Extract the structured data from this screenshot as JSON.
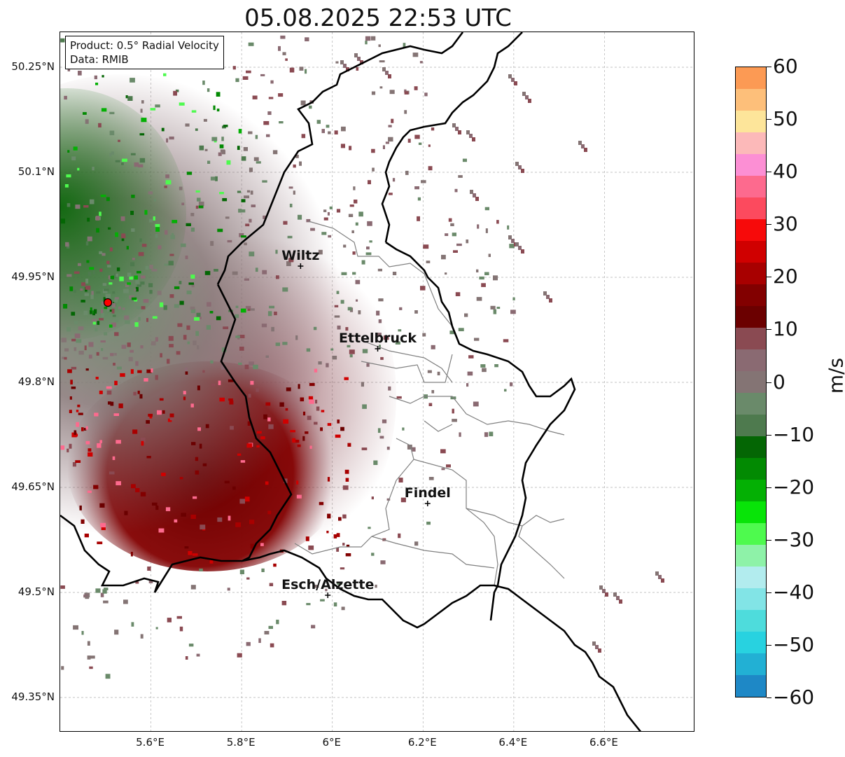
{
  "title": "05.08.2025 22:53 UTC",
  "info": {
    "product": "Product: 0.5° Radial Velocity",
    "source": "Data: RMIB"
  },
  "latitude_labels": [
    "50.25°N",
    "50.1°N",
    "49.95°N",
    "49.8°N",
    "49.65°N",
    "49.5°N",
    "49.35°N"
  ],
  "longitude_labels": [
    "5.6°E",
    "5.8°E",
    "6°E",
    "6.2°E",
    "6.4°E",
    "6.6°E"
  ],
  "colorbar": {
    "unit": "m/s",
    "ticks": [
      "60",
      "50",
      "40",
      "30",
      "20",
      "10",
      "0",
      "−10",
      "−20",
      "−30",
      "−40",
      "−50",
      "−60"
    ],
    "range": [
      -60,
      60
    ],
    "colors_top_to_bottom": [
      "#fc9a54",
      "#fdbf7a",
      "#fde59a",
      "#fcb9b9",
      "#fc8fd4",
      "#fd6a8e",
      "#fc4a5e",
      "#f70a0a",
      "#d00000",
      "#a80000",
      "#820000",
      "#6b0000",
      "#8a4a52",
      "#8a6a72",
      "#847474",
      "#6a8a6a",
      "#4e7a4e",
      "#046604",
      "#028a02",
      "#04b004",
      "#08e408",
      "#4efa4e",
      "#8ef2a8",
      "#b2ecee",
      "#82e4e6",
      "#4edcdc",
      "#28d2e0",
      "#22b0d4",
      "#1e88c6"
    ]
  },
  "cities": [
    {
      "name": "Wiltz",
      "lon": 5.93,
      "lat": 49.966
    },
    {
      "name": "Ettelbruck",
      "lon": 6.1,
      "lat": 49.848
    },
    {
      "name": "Findel",
      "lon": 6.21,
      "lat": 49.627
    },
    {
      "name": "Esch/Alzette",
      "lon": 5.99,
      "lat": 49.496
    }
  ],
  "radar_site": {
    "lon": 5.505,
    "lat": 49.914
  },
  "extent": {
    "lon_min": 5.4,
    "lon_max": 6.8,
    "lat_min": 49.3,
    "lat_max": 50.3
  },
  "colors": {
    "border": "#000000",
    "canton_border": "#808080",
    "grid": "#b0b0b0",
    "radar_marker": "#ff0000"
  }
}
